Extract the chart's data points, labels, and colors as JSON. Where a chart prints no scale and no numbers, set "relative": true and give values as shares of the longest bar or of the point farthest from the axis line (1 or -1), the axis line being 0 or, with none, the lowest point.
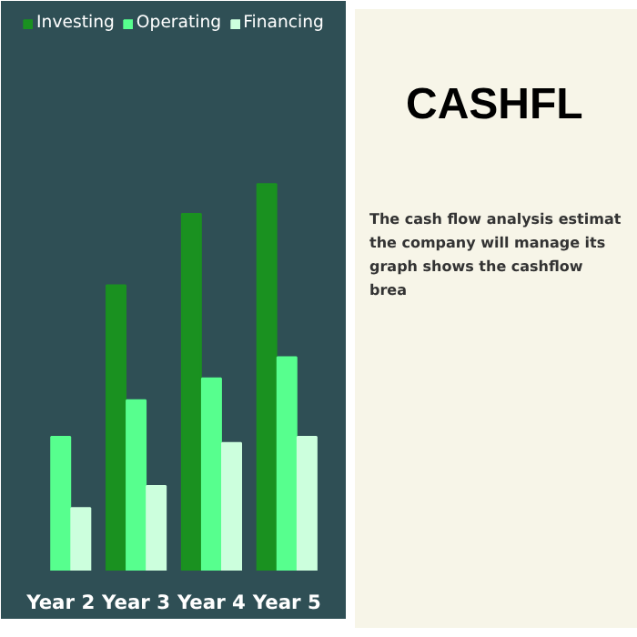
{
  "chart_data": {
    "type": "bar",
    "title": "CASHFL",
    "categories": [
      "Year 2",
      "Year 3",
      "Year 4",
      "Year 5"
    ],
    "relative": true,
    "legend": "top",
    "grid": false,
    "series": [
      {
        "name": "Investing",
        "color": "#1a9120",
        "values": [
          null,
          0.738,
          0.923,
          1
        ]
      },
      {
        "name": "Operating",
        "color": "#57ff8e",
        "values": [
          0.346,
          0.441,
          0.497,
          0.552
        ]
      },
      {
        "name": "Financing",
        "color": "#ccffdd",
        "values": [
          0.162,
          0.219,
          0.33,
          0.346
        ]
      }
    ],
    "annotations": [
      "The cash flow analysis estimat",
      "the company will manage its",
      "graph shows the cashflow brea"
    ]
  }
}
